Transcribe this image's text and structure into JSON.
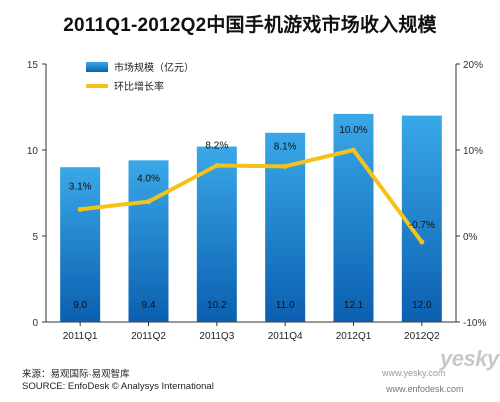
{
  "title": "2011Q1-2012Q2中国手机游戏市场收入规模",
  "footer": {
    "source_cn": "来源：易观国际·易观智库",
    "source_en": "SOURCE: EnfoDesk © Analysys International",
    "watermark_url": "www.enfodesk.com",
    "watermark_url2": "www.yesky.com",
    "watermark_logo": "yesky"
  },
  "colors": {
    "bar_top": "#3aa8e8",
    "bar_bottom": "#0b5fb0",
    "line": "#f5c21b",
    "axis": "#333333"
  },
  "chart_data": {
    "type": "bar",
    "categories": [
      "2011Q1",
      "2011Q2",
      "2011Q3",
      "2011Q4",
      "2012Q1",
      "2012Q2"
    ],
    "series": [
      {
        "name": "市场规模（亿元）",
        "type": "bar",
        "axis": "left",
        "values": [
          9.0,
          9.4,
          10.2,
          11.0,
          12.1,
          12.0
        ],
        "labels": [
          "9.0",
          "9.4",
          "10.2",
          "11.0",
          "12.1",
          "12.0"
        ]
      },
      {
        "name": "环比增长率",
        "type": "line",
        "axis": "right",
        "values": [
          3.1,
          4.0,
          8.2,
          8.1,
          10.0,
          -0.7
        ],
        "labels": [
          "3.1%",
          "4.0%",
          "8.2%",
          "8.1%",
          "10.0%",
          "-0.7%"
        ]
      }
    ],
    "y_left": {
      "min": 0,
      "max": 15,
      "ticks": [
        "0",
        "5",
        "10",
        "15"
      ]
    },
    "y_right": {
      "min": -10,
      "max": 20,
      "ticks": [
        "-10%",
        "0%",
        "10%",
        "20%"
      ]
    },
    "legend_position": "top-left",
    "grid": false
  }
}
